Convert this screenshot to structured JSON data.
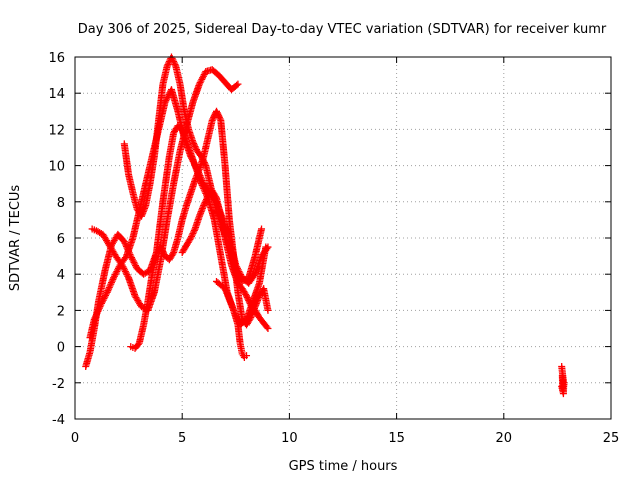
{
  "chart_data": {
    "type": "scatter",
    "title": "Day 306 of 2025, Sidereal Day-to-day VTEC variation (SDTVAR) for receiver kumr",
    "xlabel": "GPS time / hours",
    "ylabel": "SDTVAR / TECUs",
    "xlim": [
      0,
      25
    ],
    "ylim": [
      -4,
      16
    ],
    "xticks": [
      0,
      5,
      10,
      15,
      20,
      25
    ],
    "yticks": [
      -4,
      -2,
      0,
      2,
      4,
      6,
      8,
      10,
      12,
      14,
      16
    ],
    "grid": true,
    "marker": "+",
    "color": "#ff0000",
    "series": [
      {
        "x": [
          0.5,
          0.7,
          0.9,
          1.1,
          1.4,
          1.7,
          2.0,
          2.3,
          2.6,
          2.9,
          3.2,
          3.5,
          3.8,
          4.1,
          4.4,
          4.6,
          4.8,
          5.0,
          5.3,
          5.6,
          5.9,
          6.2,
          6.5,
          6.8,
          7.1,
          7.4,
          7.7,
          8.0,
          8.3,
          8.6,
          8.9
        ],
        "y": [
          -1.1,
          -0.3,
          1.0,
          2.5,
          4.2,
          5.6,
          6.2,
          5.8,
          5.0,
          4.3,
          4.0,
          4.2,
          5.2,
          8.0,
          10.5,
          11.8,
          12.2,
          12.0,
          11.0,
          10.0,
          9.0,
          8.2,
          7.0,
          5.0,
          3.0,
          2.0,
          1.2,
          1.5,
          2.5,
          3.5,
          5.5
        ]
      },
      {
        "x": [
          0.7,
          0.9,
          1.2,
          1.5,
          1.8,
          2.1,
          2.4,
          2.7,
          3.0,
          3.3,
          3.6,
          3.9,
          4.2,
          4.5,
          4.8,
          5.1,
          5.4,
          5.7,
          6.0,
          6.3,
          6.6,
          6.9,
          7.2,
          7.5,
          7.8,
          8.1,
          8.4,
          8.7,
          9.0
        ],
        "y": [
          0.5,
          1.5,
          2.3,
          3.0,
          3.8,
          4.5,
          5.0,
          6.0,
          7.5,
          9.0,
          10.5,
          12.0,
          13.5,
          14.2,
          13.0,
          11.5,
          10.5,
          9.8,
          9.0,
          8.5,
          8.0,
          7.0,
          6.0,
          4.5,
          3.8,
          3.5,
          4.0,
          5.0,
          5.5
        ]
      },
      {
        "x": [
          0.8,
          1.0,
          1.3,
          1.6,
          1.9,
          2.2,
          2.5,
          2.8,
          3.1,
          3.4,
          3.7,
          4.0,
          4.3,
          4.6,
          4.9,
          5.2,
          5.5,
          5.8,
          6.1,
          6.4,
          6.7,
          7.0,
          7.3,
          7.6
        ],
        "y": [
          6.5,
          6.4,
          6.2,
          5.6,
          5.0,
          4.5,
          3.8,
          2.8,
          2.2,
          2.0,
          3.0,
          4.8,
          7.0,
          9.0,
          10.8,
          12.2,
          13.5,
          14.5,
          15.2,
          15.3,
          15.0,
          14.6,
          14.2,
          14.5
        ]
      },
      {
        "x": [
          2.3,
          2.5,
          2.7,
          2.9,
          3.1,
          3.3,
          3.5,
          3.7,
          3.9,
          4.1,
          4.3,
          4.5,
          4.7,
          4.9,
          5.1,
          5.3,
          5.5,
          5.7,
          5.9,
          6.1,
          6.3,
          6.6,
          6.9,
          7.2,
          7.5,
          7.8,
          8.1,
          8.4,
          8.7
        ],
        "y": [
          11.2,
          9.5,
          8.5,
          7.6,
          7.2,
          7.8,
          9.0,
          10.5,
          12.5,
          14.5,
          15.5,
          16.0,
          15.5,
          14.5,
          13.0,
          12.0,
          11.3,
          10.8,
          10.5,
          10.0,
          9.0,
          7.5,
          6.5,
          5.5,
          4.3,
          3.6,
          3.8,
          5.0,
          6.5
        ]
      },
      {
        "x": [
          2.6,
          2.8,
          3.0,
          3.2,
          3.4,
          3.6,
          3.8,
          4.0,
          4.2,
          4.4,
          4.6,
          4.8,
          5.0,
          5.2,
          5.4,
          5.6,
          5.8,
          6.0,
          6.2,
          6.4,
          6.6,
          6.8,
          7.0,
          7.2,
          7.4,
          7.6,
          7.8,
          8.0,
          8.2,
          8.4,
          8.6,
          8.8,
          9.0
        ],
        "y": [
          0.0,
          -0.1,
          0.2,
          1.2,
          2.5,
          4.0,
          5.2,
          5.5,
          5.0,
          4.8,
          5.2,
          6.0,
          7.0,
          7.8,
          8.5,
          9.2,
          9.8,
          10.5,
          11.5,
          12.5,
          13.0,
          12.5,
          10.0,
          7.0,
          5.0,
          3.0,
          1.5,
          1.2,
          1.6,
          2.2,
          2.8,
          3.2,
          2.0
        ]
      },
      {
        "x": [
          5.0,
          5.2,
          5.4,
          5.6,
          5.8,
          6.0,
          6.2,
          6.4,
          6.6,
          6.8,
          7.0,
          7.3,
          7.6,
          7.8,
          8.0,
          8.2,
          8.4,
          8.6,
          8.8,
          9.0
        ],
        "y": [
          5.2,
          5.6,
          6.0,
          6.5,
          7.2,
          7.8,
          8.3,
          8.6,
          8.2,
          7.2,
          6.0,
          4.5,
          3.5,
          3.2,
          2.8,
          2.3,
          2.0,
          1.6,
          1.3,
          1.0
        ]
      },
      {
        "x": [
          6.6,
          6.8,
          7.0,
          7.2,
          7.4,
          7.6,
          7.7,
          7.8,
          7.9,
          8.0
        ],
        "y": [
          3.6,
          3.4,
          3.2,
          2.6,
          2.0,
          1.2,
          0.2,
          -0.4,
          -0.6,
          -0.5
        ]
      },
      {
        "x": [
          22.7,
          22.72,
          22.74,
          22.76,
          22.78,
          22.8,
          22.7,
          22.72,
          22.74,
          22.76,
          22.78,
          22.8,
          22.73,
          22.75
        ],
        "y": [
          -1.1,
          -1.3,
          -1.5,
          -1.7,
          -1.9,
          -2.1,
          -2.2,
          -2.3,
          -2.4,
          -2.5,
          -2.6,
          -2.0,
          -1.6,
          -2.4
        ]
      }
    ]
  }
}
